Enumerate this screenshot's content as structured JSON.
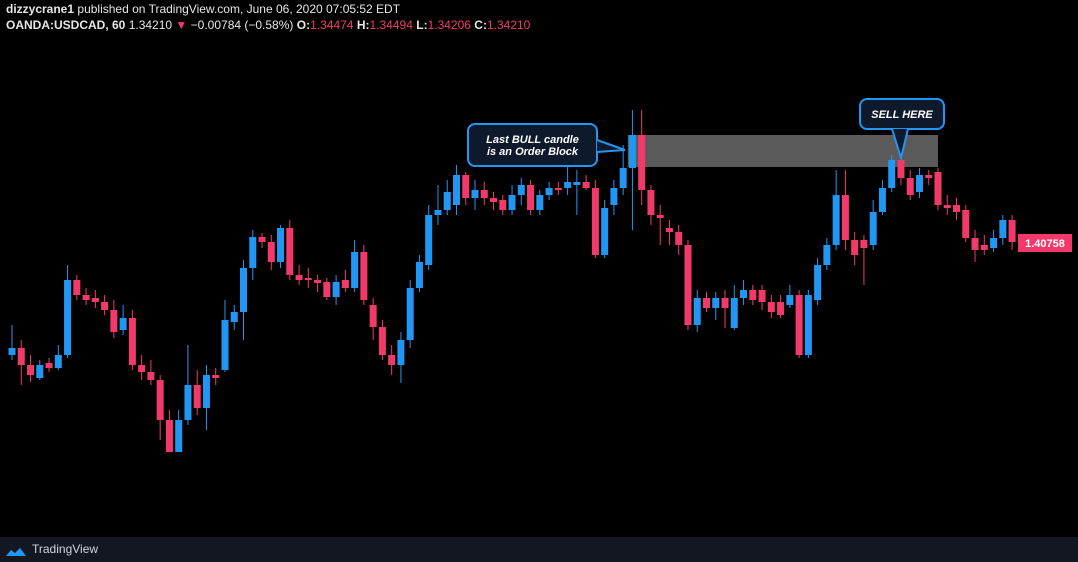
{
  "header": {
    "author": "dizzycrane1",
    "published": "published on TradingView.com, June 06, 2020 07:05:52 EDT",
    "symbol": "OANDA:USDCAD, 60",
    "price": "1.34210",
    "arrow": "▼",
    "change": "−0.00784 (−0.58%)",
    "ohlc": [
      {
        "label": "O:",
        "value": "1.34474"
      },
      {
        "label": "H:",
        "value": "1.34494"
      },
      {
        "label": "L:",
        "value": "1.34206"
      },
      {
        "label": "C:",
        "value": "1.34210"
      }
    ]
  },
  "footer": {
    "brand": "TradingView"
  },
  "chart_data": {
    "type": "candlestick",
    "up_color": "#2196f3",
    "down_color": "#f23a6a",
    "ylim": [
      1.39582,
      1.4159
    ],
    "last_price": 1.40758,
    "zone": {
      "top": 1.4119,
      "bottom": 1.41062,
      "color": "#5a5a5a"
    },
    "annotations": [
      {
        "lines": [
          "Last BULL candle",
          "is an Order Block"
        ]
      },
      {
        "lines": [
          "SELL HERE"
        ]
      }
    ],
    "ohlc": [
      [
        1.4031,
        1.4043,
        1.4029,
        1.40338
      ],
      [
        1.40338,
        1.4037,
        1.4019,
        1.4027
      ],
      [
        1.4027,
        1.4031,
        1.40202,
        1.4023
      ],
      [
        1.40218,
        1.4029,
        1.4021,
        1.4027
      ],
      [
        1.40278,
        1.40298,
        1.40242,
        1.40258
      ],
      [
        1.40258,
        1.4035,
        1.4025,
        1.4031
      ],
      [
        1.4031,
        1.4067,
        1.40298,
        1.4061
      ],
      [
        1.4061,
        1.4063,
        1.4053,
        1.4055
      ],
      [
        1.4055,
        1.40578,
        1.4051,
        1.4053
      ],
      [
        1.40538,
        1.4057,
        1.40498,
        1.40522
      ],
      [
        1.40522,
        1.4055,
        1.4047,
        1.4049
      ],
      [
        1.4049,
        1.4053,
        1.40378,
        1.40402
      ],
      [
        1.4041,
        1.4051,
        1.4039,
        1.40458
      ],
      [
        1.40458,
        1.4049,
        1.4025,
        1.4027
      ],
      [
        1.4027,
        1.4031,
        1.4021,
        1.40242
      ],
      [
        1.40242,
        1.4029,
        1.4019,
        1.4021
      ],
      [
        1.4021,
        1.4023,
        1.3997,
        1.4005
      ],
      [
        1.4005,
        1.4009,
        1.39922,
        1.39922
      ],
      [
        1.39922,
        1.4009,
        1.39922,
        1.4005
      ],
      [
        1.4005,
        1.4035,
        1.4003,
        1.4019
      ],
      [
        1.4019,
        1.4025,
        1.4007,
        1.40098
      ],
      [
        1.40098,
        1.4027,
        1.4001,
        1.4023
      ],
      [
        1.4023,
        1.40258,
        1.4019,
        1.40218
      ],
      [
        1.4025,
        1.4053,
        1.40242,
        1.4045
      ],
      [
        1.40442,
        1.4051,
        1.4041,
        1.40482
      ],
      [
        1.40482,
        1.4069,
        1.4037,
        1.40658
      ],
      [
        1.40658,
        1.4081,
        1.4061,
        1.40782
      ],
      [
        1.40782,
        1.40798,
        1.40738,
        1.40762
      ],
      [
        1.40762,
        1.4079,
        1.4065,
        1.40682
      ],
      [
        1.40682,
        1.4083,
        1.40658,
        1.40818
      ],
      [
        1.40818,
        1.4085,
        1.4061,
        1.4063
      ],
      [
        1.4063,
        1.4067,
        1.4059,
        1.4061
      ],
      [
        1.40618,
        1.40658,
        1.40578,
        1.4061
      ],
      [
        1.4061,
        1.4063,
        1.40562,
        1.40598
      ],
      [
        1.40602,
        1.40618,
        1.4053,
        1.40542
      ],
      [
        1.40542,
        1.4063,
        1.4051,
        1.40602
      ],
      [
        1.4061,
        1.4065,
        1.40562,
        1.40578
      ],
      [
        1.40578,
        1.4077,
        1.40562,
        1.40722
      ],
      [
        1.40722,
        1.4075,
        1.4051,
        1.4053
      ],
      [
        1.4051,
        1.40538,
        1.4037,
        1.40422
      ],
      [
        1.40422,
        1.4045,
        1.4029,
        1.4031
      ],
      [
        1.4031,
        1.4035,
        1.4023,
        1.4027
      ],
      [
        1.4027,
        1.40402,
        1.40198,
        1.4037
      ],
      [
        1.4037,
        1.4061,
        1.40338,
        1.40578
      ],
      [
        1.40578,
        1.4071,
        1.40562,
        1.40682
      ],
      [
        1.4067,
        1.4091,
        1.4065,
        1.4087
      ],
      [
        1.4087,
        1.4099,
        1.4083,
        1.4089
      ],
      [
        1.4089,
        1.4101,
        1.4087,
        1.40962
      ],
      [
        1.4091,
        1.4107,
        1.4087,
        1.4103
      ],
      [
        1.4103,
        1.41042,
        1.4091,
        1.40938
      ],
      [
        1.40938,
        1.4101,
        1.4089,
        1.4097
      ],
      [
        1.4097,
        1.41002,
        1.4091,
        1.40938
      ],
      [
        1.40938,
        1.40962,
        1.4089,
        1.40922
      ],
      [
        1.4093,
        1.4095,
        1.4087,
        1.4089
      ],
      [
        1.4089,
        1.4099,
        1.4087,
        1.4095
      ],
      [
        1.4095,
        1.41018,
        1.4091,
        1.4099
      ],
      [
        1.4099,
        1.4101,
        1.4087,
        1.4089
      ],
      [
        1.4089,
        1.4097,
        1.4087,
        1.4095
      ],
      [
        1.4095,
        1.41002,
        1.4093,
        1.40978
      ],
      [
        1.40978,
        1.41002,
        1.4095,
        1.4097
      ],
      [
        1.40978,
        1.4107,
        1.4095,
        1.41002
      ],
      [
        1.4099,
        1.4105,
        1.4087,
        1.41002
      ],
      [
        1.41002,
        1.4103,
        1.4097,
        1.40978
      ],
      [
        1.40978,
        1.4101,
        1.40698,
        1.4071
      ],
      [
        1.4071,
        1.4093,
        1.40698,
        1.40898
      ],
      [
        1.4091,
        1.4101,
        1.4087,
        1.40978
      ],
      [
        1.40978,
        1.4115,
        1.4095,
        1.41058
      ],
      [
        1.41058,
        1.4129,
        1.4081,
        1.4119
      ],
      [
        1.4119,
        1.4129,
        1.4091,
        1.4097
      ],
      [
        1.4097,
        1.4099,
        1.4083,
        1.4087
      ],
      [
        1.4087,
        1.4091,
        1.4075,
        1.40858
      ],
      [
        1.40818,
        1.4085,
        1.4075,
        1.40802
      ],
      [
        1.40802,
        1.4083,
        1.4071,
        1.4075
      ],
      [
        1.4075,
        1.4077,
        1.4041,
        1.4043
      ],
      [
        1.4043,
        1.4057,
        1.40402,
        1.40538
      ],
      [
        1.40538,
        1.40562,
        1.40482,
        1.40498
      ],
      [
        1.40498,
        1.40562,
        1.4045,
        1.40538
      ],
      [
        1.40538,
        1.4057,
        1.40418,
        1.40498
      ],
      [
        1.40418,
        1.4059,
        1.4041,
        1.40538
      ],
      [
        1.40538,
        1.4061,
        1.4051,
        1.4057
      ],
      [
        1.4057,
        1.4059,
        1.4051,
        1.4053
      ],
      [
        1.4057,
        1.4059,
        1.4049,
        1.40522
      ],
      [
        1.40522,
        1.4055,
        1.40458,
        1.40482
      ],
      [
        1.40522,
        1.4055,
        1.40458,
        1.4047
      ],
      [
        1.4051,
        1.4059,
        1.40498,
        1.4055
      ],
      [
        1.4055,
        1.4057,
        1.40298,
        1.4031
      ],
      [
        1.4031,
        1.4057,
        1.40298,
        1.4055
      ],
      [
        1.4053,
        1.40698,
        1.4051,
        1.4067
      ],
      [
        1.4067,
        1.40778,
        1.4065,
        1.4075
      ],
      [
        1.4075,
        1.4105,
        1.4073,
        1.4095
      ],
      [
        1.4095,
        1.4105,
        1.4073,
        1.4077
      ],
      [
        1.4077,
        1.40802,
        1.4067,
        1.4071
      ],
      [
        1.4077,
        1.4079,
        1.4059,
        1.40738
      ],
      [
        1.4075,
        1.4093,
        1.4073,
        1.40882
      ],
      [
        1.40882,
        1.4101,
        1.4087,
        1.40978
      ],
      [
        1.40978,
        1.4111,
        1.40962,
        1.4109
      ],
      [
        1.4109,
        1.4113,
        1.4099,
        1.41018
      ],
      [
        1.41018,
        1.4105,
        1.4093,
        1.4095
      ],
      [
        1.40962,
        1.41058,
        1.40938,
        1.4103
      ],
      [
        1.4103,
        1.4105,
        1.4099,
        1.41018
      ],
      [
        1.41042,
        1.41058,
        1.4089,
        1.4091
      ],
      [
        1.4091,
        1.4095,
        1.4087,
        1.40898
      ],
      [
        1.4091,
        1.40938,
        1.4085,
        1.40882
      ],
      [
        1.4089,
        1.4091,
        1.40762,
        1.40778
      ],
      [
        1.40778,
        1.4081,
        1.40682,
        1.4073
      ],
      [
        1.4075,
        1.4079,
        1.4071,
        1.4073
      ],
      [
        1.40738,
        1.4081,
        1.40722,
        1.40778
      ],
      [
        1.40778,
        1.4087,
        1.4075,
        1.4085
      ],
      [
        1.4085,
        1.4087,
        1.4073,
        1.40762
      ]
    ]
  }
}
